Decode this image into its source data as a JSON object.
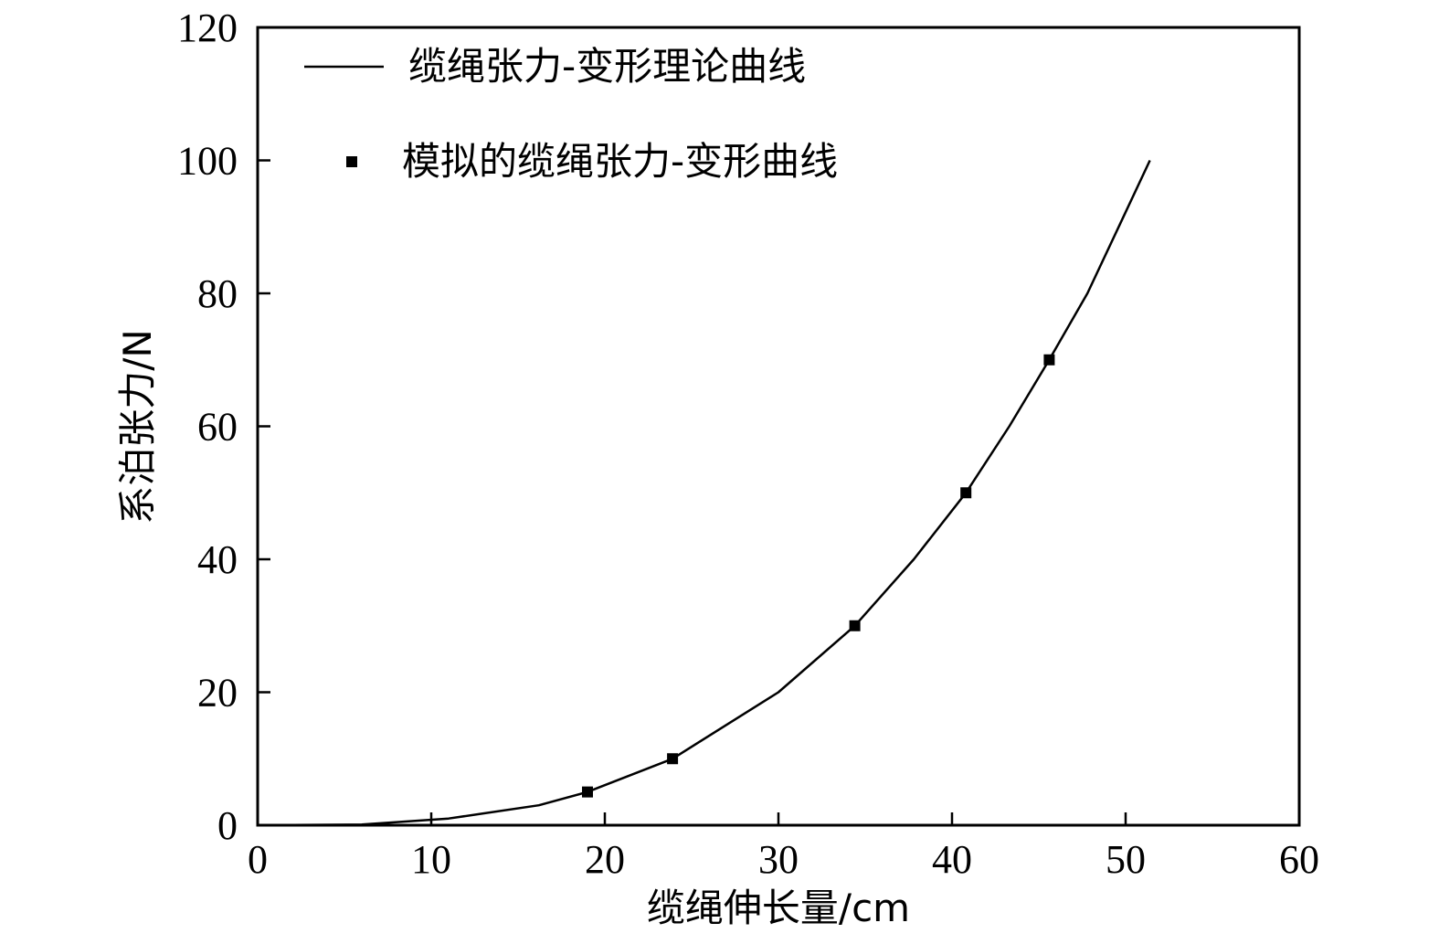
{
  "chart_data": {
    "type": "line",
    "title": "",
    "xlabel": "缆绳伸长量/cm",
    "ylabel": "系泊张力/N",
    "xlim": [
      0,
      60
    ],
    "ylim": [
      0,
      120
    ],
    "xticks": [
      "0",
      "10",
      "20",
      "30",
      "40",
      "50",
      "60"
    ],
    "yticks": [
      "0",
      "20",
      "40",
      "60",
      "80",
      "100",
      "120"
    ],
    "grid": false,
    "legend_position": "top-left",
    "series": [
      {
        "name": "缆绳张力-变形理论曲线",
        "style": "line",
        "color": "#000000",
        "x": [
          0,
          6,
          11,
          16.2,
          19,
          23.9,
          30,
          34.4,
          37.8,
          40.8,
          43.3,
          45.6,
          47.8,
          49.6,
          51.4
        ],
        "y": [
          0,
          0.1,
          1,
          3,
          5,
          10,
          20,
          30,
          40,
          50,
          60,
          70,
          80,
          90,
          100
        ]
      },
      {
        "name": "模拟的缆绳张力-变形曲线",
        "style": "marker-square",
        "color": "#000000",
        "x": [
          19,
          23.9,
          34.4,
          40.8,
          45.6
        ],
        "y": [
          5,
          10,
          30,
          50,
          70
        ]
      }
    ]
  }
}
